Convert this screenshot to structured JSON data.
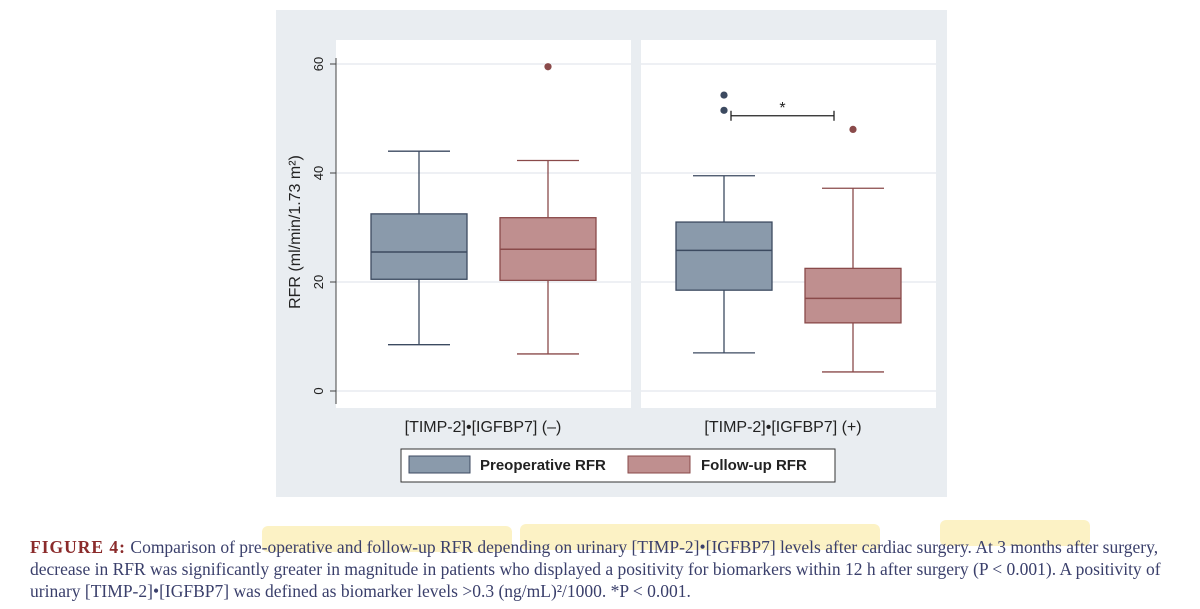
{
  "chart_data": {
    "type": "box",
    "ylabel": "RFR (ml/min/1.73 m²)",
    "ylim": [
      0,
      60
    ],
    "yticks": [
      0,
      20,
      40,
      60
    ],
    "groups": [
      "[TIMP-2]•[IGFBP7] (–)",
      "[TIMP-2]•[IGFBP7] (+)"
    ],
    "legend": {
      "position": "bottom"
    },
    "grid": true,
    "series": [
      {
        "name": "Preoperative RFR",
        "color": "#8a9aab",
        "stroke": "#3c4a60",
        "boxes": [
          {
            "min": 8.5,
            "q1": 20.5,
            "median": 25.5,
            "q3": 32.5,
            "max": 44.0,
            "outliers": []
          },
          {
            "min": 7.0,
            "q1": 18.5,
            "median": 25.8,
            "q3": 31.0,
            "max": 39.5,
            "outliers": [
              51.5,
              54.3
            ]
          }
        ]
      },
      {
        "name": "Follow-up RFR",
        "color": "#bf8f8f",
        "stroke": "#8a4a4a",
        "boxes": [
          {
            "min": 6.8,
            "q1": 20.3,
            "median": 26.0,
            "q3": 31.8,
            "max": 42.3,
            "outliers": [
              59.5
            ]
          },
          {
            "min": 3.5,
            "q1": 12.5,
            "median": 17.0,
            "q3": 22.5,
            "max": 37.2,
            "outliers": [
              48.0
            ]
          }
        ]
      }
    ],
    "annotations": [
      {
        "text": "*",
        "group": 1,
        "y": 50.5,
        "type": "significance-bracket"
      }
    ]
  },
  "caption": {
    "label": "FIGURE 4:",
    "text": "Comparison of pre-operative and follow-up RFR depending on urinary [TIMP-2]•[IGFBP7] levels after cardiac surgery. At 3 months after surgery, decrease in RFR was significantly greater in magnitude in patients who displayed a positivity for biomarkers within 12 h after surgery (P < 0.001). A positivity of urinary [TIMP-2]•[IGFBP7] was defined as biomarker levels >0.3 (ng/mL)²/1000. *P < 0.001."
  }
}
